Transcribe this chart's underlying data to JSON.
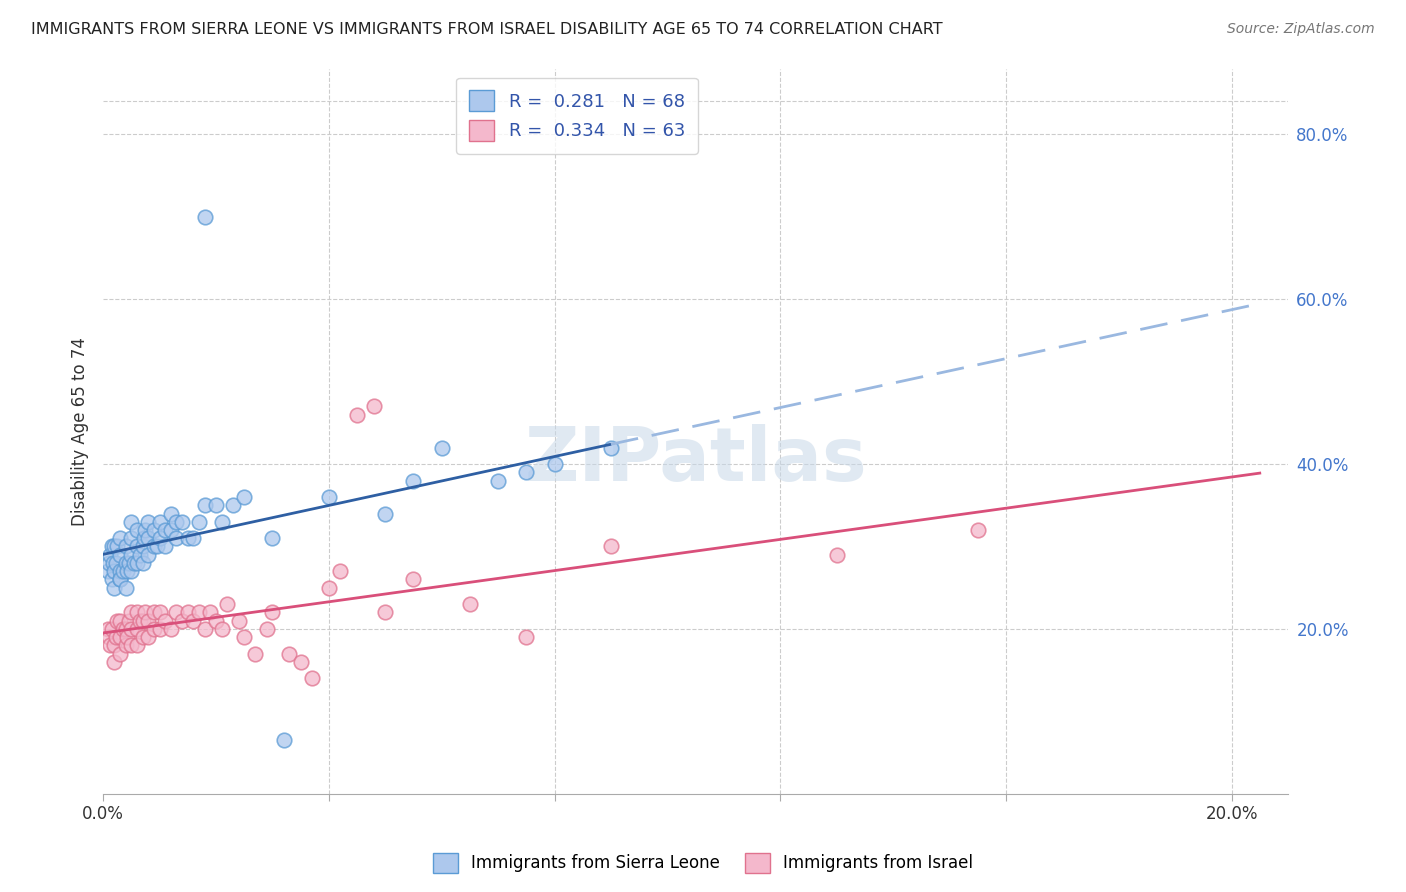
{
  "title": "IMMIGRANTS FROM SIERRA LEONE VS IMMIGRANTS FROM ISRAEL DISABILITY AGE 65 TO 74 CORRELATION CHART",
  "source": "Source: ZipAtlas.com",
  "ylabel": "Disability Age 65 to 74",
  "xlim": [
    0.0,
    0.21
  ],
  "ylim": [
    0.0,
    0.88
  ],
  "x_ticks": [
    0.0,
    0.04,
    0.08,
    0.12,
    0.16,
    0.2
  ],
  "x_tick_labels": [
    "0.0%",
    "",
    "",
    "",
    "",
    "20.0%"
  ],
  "y_ticks_right": [
    0.2,
    0.4,
    0.6,
    0.8
  ],
  "y_tick_labels_right": [
    "20.0%",
    "40.0%",
    "60.0%",
    "80.0%"
  ],
  "watermark": "ZIPatlas",
  "legend_r1": "R =  0.281",
  "legend_n1": "N = 68",
  "legend_r2": "R =  0.334",
  "legend_n2": "N = 63",
  "sierra_leone_color": "#adc8ed",
  "sierra_leone_edge": "#5b9bd5",
  "israel_color": "#f4b8cc",
  "israel_edge": "#e0728e",
  "trend_sierra_color": "#2e5fa3",
  "trend_israel_color": "#d94f7a",
  "trend_dash_color": "#9ab8e0",
  "background_color": "#ffffff",
  "sierra_leone_x": [
    0.0008,
    0.001,
    0.0012,
    0.0015,
    0.0015,
    0.0018,
    0.002,
    0.002,
    0.002,
    0.0022,
    0.0025,
    0.003,
    0.003,
    0.003,
    0.003,
    0.003,
    0.0035,
    0.004,
    0.004,
    0.004,
    0.0042,
    0.0045,
    0.005,
    0.005,
    0.005,
    0.005,
    0.0055,
    0.006,
    0.006,
    0.006,
    0.0065,
    0.007,
    0.007,
    0.0072,
    0.0075,
    0.008,
    0.008,
    0.008,
    0.009,
    0.009,
    0.0095,
    0.01,
    0.01,
    0.011,
    0.011,
    0.012,
    0.012,
    0.013,
    0.013,
    0.014,
    0.015,
    0.016,
    0.017,
    0.018,
    0.02,
    0.021,
    0.023,
    0.025,
    0.03,
    0.032,
    0.04,
    0.05,
    0.055,
    0.06,
    0.07,
    0.075,
    0.08,
    0.09
  ],
  "sierra_leone_y": [
    0.27,
    0.28,
    0.29,
    0.3,
    0.26,
    0.28,
    0.25,
    0.27,
    0.3,
    0.28,
    0.3,
    0.26,
    0.27,
    0.29,
    0.31,
    0.26,
    0.27,
    0.25,
    0.28,
    0.3,
    0.27,
    0.28,
    0.27,
    0.29,
    0.31,
    0.33,
    0.28,
    0.28,
    0.3,
    0.32,
    0.29,
    0.28,
    0.3,
    0.31,
    0.32,
    0.29,
    0.31,
    0.33,
    0.3,
    0.32,
    0.3,
    0.31,
    0.33,
    0.3,
    0.32,
    0.32,
    0.34,
    0.31,
    0.33,
    0.33,
    0.31,
    0.31,
    0.33,
    0.35,
    0.35,
    0.33,
    0.35,
    0.36,
    0.31,
    0.065,
    0.36,
    0.34,
    0.38,
    0.42,
    0.38,
    0.39,
    0.4,
    0.42
  ],
  "sierra_leone_outlier_x": [
    0.018
  ],
  "sierra_leone_outlier_y": [
    0.7
  ],
  "israel_x": [
    0.0008,
    0.001,
    0.0012,
    0.0015,
    0.002,
    0.002,
    0.0022,
    0.0025,
    0.003,
    0.003,
    0.003,
    0.0035,
    0.004,
    0.004,
    0.0042,
    0.0045,
    0.005,
    0.005,
    0.005,
    0.006,
    0.006,
    0.006,
    0.0065,
    0.007,
    0.007,
    0.0075,
    0.008,
    0.008,
    0.009,
    0.009,
    0.01,
    0.01,
    0.011,
    0.012,
    0.013,
    0.014,
    0.015,
    0.016,
    0.017,
    0.018,
    0.019,
    0.02,
    0.021,
    0.022,
    0.024,
    0.025,
    0.027,
    0.029,
    0.03,
    0.033,
    0.035,
    0.037,
    0.04,
    0.042,
    0.045,
    0.048,
    0.05,
    0.055,
    0.065,
    0.075,
    0.09,
    0.13,
    0.155
  ],
  "israel_y": [
    0.2,
    0.19,
    0.18,
    0.2,
    0.16,
    0.18,
    0.19,
    0.21,
    0.17,
    0.19,
    0.21,
    0.2,
    0.18,
    0.2,
    0.19,
    0.21,
    0.18,
    0.2,
    0.22,
    0.18,
    0.2,
    0.22,
    0.21,
    0.19,
    0.21,
    0.22,
    0.19,
    0.21,
    0.2,
    0.22,
    0.2,
    0.22,
    0.21,
    0.2,
    0.22,
    0.21,
    0.22,
    0.21,
    0.22,
    0.2,
    0.22,
    0.21,
    0.2,
    0.23,
    0.21,
    0.19,
    0.17,
    0.2,
    0.22,
    0.17,
    0.16,
    0.14,
    0.25,
    0.27,
    0.46,
    0.47,
    0.22,
    0.26,
    0.23,
    0.19,
    0.3,
    0.29,
    0.32
  ]
}
